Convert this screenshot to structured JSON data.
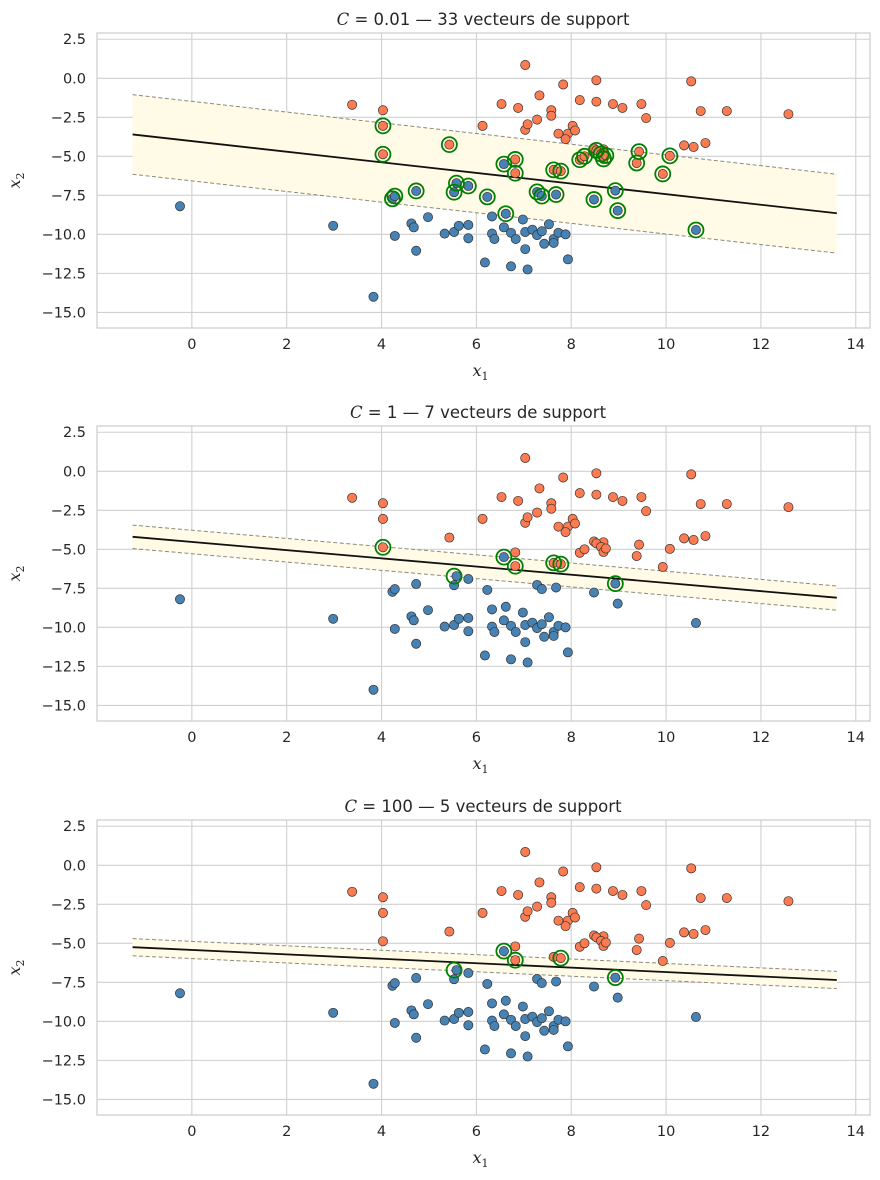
{
  "chart_data": [
    {
      "type": "scatter",
      "title": "C = 0.01 — 33 vecteurs de support",
      "title_prefix": "C",
      "title_value": "0.01",
      "title_suffix": " — 33 vecteurs de support",
      "xlabel": "x1",
      "xlabel_base": "x",
      "xlabel_sub": "1",
      "ylabel": "x2",
      "ylabel_base": "x",
      "ylabel_sub": "2",
      "xlim": [
        -2,
        14.3
      ],
      "ylim": [
        -16,
        2.9
      ],
      "xticks": [
        0,
        2,
        4,
        6,
        8,
        10,
        12,
        14
      ],
      "yticks": [
        2.5,
        0.0,
        -2.5,
        -5.0,
        -7.5,
        -10.0,
        -12.5,
        -15.0
      ],
      "grid": true,
      "decision_line": {
        "x": [
          -1.25,
          13.6
        ],
        "y": [
          -3.6,
          -8.65
        ]
      },
      "margin_upper": {
        "x": [
          -1.25,
          13.6
        ],
        "y": [
          -1.05,
          -6.15
        ]
      },
      "margin_lower": {
        "x": [
          -1.25,
          13.6
        ],
        "y": [
          -6.15,
          -11.2
        ]
      },
      "support_vectors": [
        [
          4.03,
          -3.05
        ],
        [
          4.03,
          -4.87
        ],
        [
          4.23,
          -7.72
        ],
        [
          4.28,
          -7.55
        ],
        [
          4.73,
          -7.22
        ],
        [
          5.43,
          -4.25
        ],
        [
          5.53,
          -7.3
        ],
        [
          5.58,
          -6.72
        ],
        [
          5.83,
          -6.9
        ],
        [
          6.23,
          -7.6
        ],
        [
          6.58,
          -5.5
        ],
        [
          6.62,
          -8.68
        ],
        [
          6.82,
          -5.2
        ],
        [
          6.82,
          -6.08
        ],
        [
          7.28,
          -7.28
        ],
        [
          7.38,
          -7.55
        ],
        [
          7.63,
          -5.87
        ],
        [
          7.68,
          -7.45
        ],
        [
          7.78,
          -5.95
        ],
        [
          8.18,
          -5.22
        ],
        [
          8.28,
          -5.0
        ],
        [
          8.48,
          -7.77
        ],
        [
          8.53,
          -4.62
        ],
        [
          8.63,
          -4.85
        ],
        [
          8.68,
          -5.17
        ],
        [
          8.73,
          -4.95
        ],
        [
          8.93,
          -7.2
        ],
        [
          8.98,
          -8.48
        ],
        [
          9.38,
          -5.43
        ],
        [
          9.43,
          -4.7
        ],
        [
          9.93,
          -6.13
        ],
        [
          10.08,
          -4.97
        ],
        [
          10.63,
          -9.72
        ]
      ]
    },
    {
      "type": "scatter",
      "title": "C = 1 — 7 vecteurs de support",
      "title_prefix": "C",
      "title_value": "1",
      "title_suffix": " — 7 vecteurs de support",
      "xlabel": "x1",
      "xlabel_base": "x",
      "xlabel_sub": "1",
      "ylabel": "x2",
      "ylabel_base": "x",
      "ylabel_sub": "2",
      "xlim": [
        -2,
        14.3
      ],
      "ylim": [
        -16,
        2.9
      ],
      "xticks": [
        0,
        2,
        4,
        6,
        8,
        10,
        12,
        14
      ],
      "yticks": [
        2.5,
        0.0,
        -2.5,
        -5.0,
        -7.5,
        -10.0,
        -12.5,
        -15.0
      ],
      "grid": true,
      "decision_line": {
        "x": [
          -1.25,
          13.6
        ],
        "y": [
          -4.2,
          -8.1
        ]
      },
      "margin_upper": {
        "x": [
          -1.25,
          13.6
        ],
        "y": [
          -3.45,
          -7.35
        ]
      },
      "margin_lower": {
        "x": [
          -1.25,
          13.6
        ],
        "y": [
          -4.95,
          -8.9
        ]
      },
      "support_vectors": [
        [
          4.03,
          -4.87
        ],
        [
          5.53,
          -6.72
        ],
        [
          6.58,
          -5.5
        ],
        [
          6.82,
          -6.08
        ],
        [
          7.63,
          -5.87
        ],
        [
          7.78,
          -5.95
        ],
        [
          8.93,
          -7.2
        ]
      ]
    },
    {
      "type": "scatter",
      "title": "C = 100 — 5 vecteurs de support",
      "title_prefix": "C",
      "title_value": "100",
      "title_suffix": " — 5 vecteurs de support",
      "xlabel": "x1",
      "xlabel_base": "x",
      "xlabel_sub": "1",
      "ylabel": "x2",
      "ylabel_base": "x",
      "ylabel_sub": "2",
      "xlim": [
        -2,
        14.3
      ],
      "ylim": [
        -16,
        2.9
      ],
      "xticks": [
        0,
        2,
        4,
        6,
        8,
        10,
        12,
        14
      ],
      "yticks": [
        2.5,
        0.0,
        -2.5,
        -5.0,
        -7.5,
        -10.0,
        -12.5,
        -15.0
      ],
      "grid": true,
      "decision_line": {
        "x": [
          -1.25,
          13.6
        ],
        "y": [
          -5.25,
          -7.35
        ]
      },
      "margin_upper": {
        "x": [
          -1.25,
          13.6
        ],
        "y": [
          -4.7,
          -6.8
        ]
      },
      "margin_lower": {
        "x": [
          -1.25,
          13.6
        ],
        "y": [
          -5.8,
          -7.9
        ]
      },
      "support_vectors": [
        [
          5.53,
          -6.72
        ],
        [
          6.58,
          -5.5
        ],
        [
          6.82,
          -6.08
        ],
        [
          7.78,
          -5.95
        ],
        [
          8.93,
          -7.2
        ]
      ]
    }
  ],
  "points_class_orange": [
    [
      7.03,
      0.85
    ],
    [
      10.53,
      -0.2
    ],
    [
      8.53,
      -0.13
    ],
    [
      7.83,
      -0.4
    ],
    [
      6.53,
      -1.65
    ],
    [
      6.88,
      -1.9
    ],
    [
      7.33,
      -1.1
    ],
    [
      8.18,
      -1.4
    ],
    [
      8.53,
      -1.5
    ],
    [
      8.88,
      -1.65
    ],
    [
      9.08,
      -1.9
    ],
    [
      9.48,
      -1.65
    ],
    [
      10.73,
      -2.1
    ],
    [
      11.28,
      -2.1
    ],
    [
      12.58,
      -2.3
    ],
    [
      3.38,
      -1.7
    ],
    [
      4.03,
      -2.05
    ],
    [
      7.58,
      -2.05
    ],
    [
      7.58,
      -2.4
    ],
    [
      9.58,
      -2.55
    ],
    [
      6.13,
      -3.05
    ],
    [
      7.03,
      -3.3
    ],
    [
      7.08,
      -2.95
    ],
    [
      7.28,
      -2.65
    ],
    [
      7.93,
      -3.55
    ],
    [
      8.03,
      -3.05
    ],
    [
      8.08,
      -3.35
    ],
    [
      7.73,
      -3.55
    ],
    [
      7.88,
      -3.9
    ],
    [
      10.38,
      -4.3
    ],
    [
      10.58,
      -4.4
    ],
    [
      10.83,
      -4.15
    ],
    [
      8.48,
      -4.5
    ],
    [
      8.68,
      -4.55
    ],
    [
      4.03,
      -3.05
    ],
    [
      4.03,
      -4.87
    ],
    [
      5.43,
      -4.25
    ],
    [
      6.82,
      -5.2
    ],
    [
      6.82,
      -6.08
    ],
    [
      7.63,
      -5.87
    ],
    [
      7.78,
      -5.95
    ],
    [
      8.18,
      -5.22
    ],
    [
      8.28,
      -5.0
    ],
    [
      8.53,
      -4.62
    ],
    [
      8.63,
      -4.85
    ],
    [
      8.68,
      -5.17
    ],
    [
      8.73,
      -4.95
    ],
    [
      9.38,
      -5.43
    ],
    [
      9.43,
      -4.7
    ],
    [
      9.93,
      -6.13
    ],
    [
      10.08,
      -4.97
    ]
  ],
  "points_class_blue": [
    [
      -0.25,
      -8.2
    ],
    [
      2.98,
      -9.45
    ],
    [
      3.83,
      -14.0
    ],
    [
      4.23,
      -7.72
    ],
    [
      4.28,
      -7.55
    ],
    [
      4.28,
      -10.1
    ],
    [
      4.63,
      -9.3
    ],
    [
      4.68,
      -9.55
    ],
    [
      4.73,
      -11.05
    ],
    [
      4.73,
      -7.22
    ],
    [
      4.98,
      -8.9
    ],
    [
      5.33,
      -9.95
    ],
    [
      5.53,
      -7.3
    ],
    [
      5.58,
      -6.72
    ],
    [
      5.53,
      -9.85
    ],
    [
      5.63,
      -9.45
    ],
    [
      5.83,
      -6.9
    ],
    [
      5.83,
      -9.4
    ],
    [
      5.83,
      -10.25
    ],
    [
      6.18,
      -11.8
    ],
    [
      6.23,
      -7.6
    ],
    [
      6.33,
      -8.85
    ],
    [
      6.33,
      -9.95
    ],
    [
      6.38,
      -10.3
    ],
    [
      6.58,
      -5.5
    ],
    [
      6.58,
      -9.55
    ],
    [
      6.62,
      -8.68
    ],
    [
      6.73,
      -9.9
    ],
    [
      6.73,
      -12.05
    ],
    [
      6.83,
      -10.3
    ],
    [
      6.98,
      -9.05
    ],
    [
      7.03,
      -9.85
    ],
    [
      7.03,
      -10.95
    ],
    [
      7.08,
      -12.25
    ],
    [
      7.18,
      -9.7
    ],
    [
      7.28,
      -7.28
    ],
    [
      7.28,
      -10.05
    ],
    [
      7.38,
      -7.55
    ],
    [
      7.38,
      -9.8
    ],
    [
      7.43,
      -10.6
    ],
    [
      7.53,
      -9.35
    ],
    [
      7.63,
      -10.3
    ],
    [
      7.63,
      -10.55
    ],
    [
      7.68,
      -7.45
    ],
    [
      7.73,
      -9.9
    ],
    [
      7.93,
      -11.6
    ],
    [
      8.48,
      -7.77
    ],
    [
      8.93,
      -7.2
    ],
    [
      8.98,
      -8.48
    ],
    [
      10.63,
      -9.72
    ],
    [
      7.88,
      -10.0
    ]
  ],
  "colors": {
    "orange": "#fc7b50",
    "blue": "#4682b4",
    "support_ring": "#008000",
    "margin_fill": "#fffbe6",
    "margin_line": "#8a8a7a",
    "decision_line": "#111111"
  }
}
